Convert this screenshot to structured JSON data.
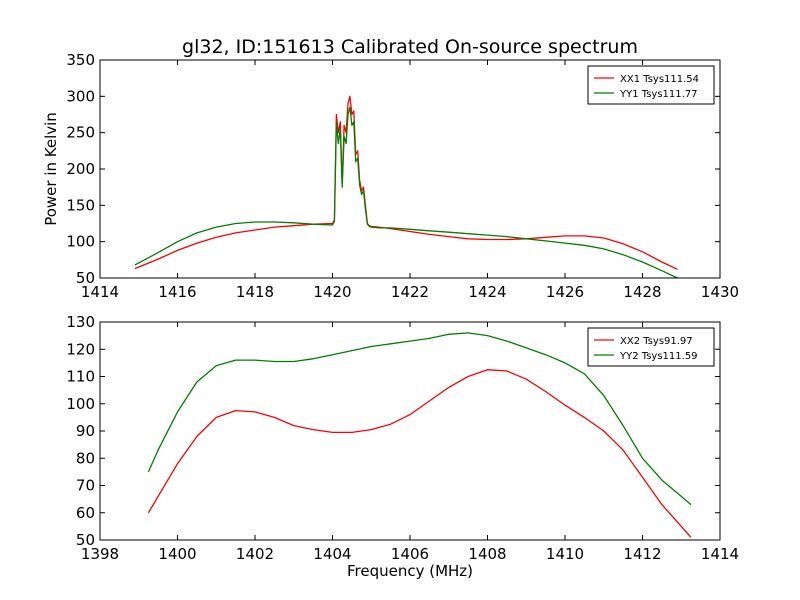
{
  "figure": {
    "title": "gl32, ID:151613 Calibrated On-source spectrum"
  },
  "chart_data": [
    {
      "type": "line",
      "title": "gl32, ID:151613 Calibrated On-source spectrum",
      "xlabel": "",
      "ylabel": "Power in Kelvin",
      "xlim": [
        1414,
        1430
      ],
      "ylim": [
        50,
        350
      ],
      "xticks": [
        1414,
        1416,
        1418,
        1420,
        1422,
        1424,
        1426,
        1428,
        1430
      ],
      "yticks": [
        50,
        100,
        150,
        200,
        250,
        300,
        350
      ],
      "grid": false,
      "legend_position": "top-right",
      "series": [
        {
          "name": "XX1 Tsys111.54",
          "color": "#ff0000",
          "x": [
            1414.9,
            1415.5,
            1416.0,
            1416.5,
            1417.0,
            1417.5,
            1418.0,
            1418.5,
            1419.0,
            1419.5,
            1420.0,
            1420.05,
            1420.1,
            1420.15,
            1420.2,
            1420.25,
            1420.3,
            1420.35,
            1420.4,
            1420.45,
            1420.5,
            1420.55,
            1420.6,
            1420.65,
            1420.7,
            1420.75,
            1420.8,
            1420.85,
            1420.9,
            1420.95,
            1421.0,
            1421.2,
            1421.5,
            1422.0,
            1422.5,
            1423.0,
            1423.5,
            1424.0,
            1424.5,
            1425.0,
            1425.5,
            1426.0,
            1426.5,
            1427.0,
            1427.5,
            1428.0,
            1428.5,
            1428.9
          ],
          "y": [
            63,
            76,
            88,
            98,
            106,
            112,
            116,
            120,
            122,
            124,
            125,
            130,
            275,
            250,
            265,
            180,
            260,
            250,
            290,
            300,
            275,
            280,
            220,
            225,
            185,
            170,
            175,
            150,
            125,
            122,
            121,
            120,
            118,
            114,
            110,
            107,
            104,
            103,
            103,
            104,
            106,
            108,
            108,
            105,
            97,
            86,
            72,
            62
          ]
        },
        {
          "name": "YY1 Tsys111.77",
          "color": "#008000",
          "x": [
            1414.9,
            1415.5,
            1416.0,
            1416.5,
            1417.0,
            1417.5,
            1418.0,
            1418.5,
            1419.0,
            1419.5,
            1420.0,
            1420.05,
            1420.1,
            1420.15,
            1420.2,
            1420.25,
            1420.3,
            1420.35,
            1420.4,
            1420.45,
            1420.5,
            1420.55,
            1420.6,
            1420.65,
            1420.7,
            1420.75,
            1420.8,
            1420.85,
            1420.9,
            1420.95,
            1421.0,
            1421.2,
            1421.5,
            1422.0,
            1422.5,
            1423.0,
            1423.5,
            1424.0,
            1424.5,
            1425.0,
            1425.5,
            1426.0,
            1426.5,
            1427.0,
            1427.5,
            1428.0,
            1428.5,
            1428.9
          ],
          "y": [
            68,
            85,
            100,
            112,
            120,
            125,
            127,
            127,
            126,
            124,
            123,
            128,
            265,
            235,
            255,
            175,
            245,
            235,
            275,
            285,
            260,
            265,
            210,
            215,
            178,
            165,
            170,
            145,
            124,
            121,
            120,
            119,
            119,
            117,
            115,
            113,
            111,
            109,
            107,
            104,
            101,
            98,
            95,
            90,
            82,
            72,
            60,
            50
          ]
        }
      ]
    },
    {
      "type": "line",
      "title": "",
      "xlabel": "Frequency (MHz)",
      "ylabel": "",
      "xlim": [
        1398,
        1414
      ],
      "ylim": [
        50,
        130
      ],
      "xticks": [
        1398,
        1400,
        1402,
        1404,
        1406,
        1408,
        1410,
        1412,
        1414
      ],
      "yticks": [
        50,
        60,
        70,
        80,
        90,
        100,
        110,
        120,
        130
      ],
      "grid": false,
      "legend_position": "top-right",
      "series": [
        {
          "name": "XX2 Tsys91.97",
          "color": "#ff0000",
          "x": [
            1399.25,
            1399.5,
            1400.0,
            1400.5,
            1401.0,
            1401.5,
            1402.0,
            1402.5,
            1403.0,
            1403.5,
            1404.0,
            1404.5,
            1405.0,
            1405.5,
            1406.0,
            1406.5,
            1407.0,
            1407.5,
            1408.0,
            1408.5,
            1409.0,
            1409.5,
            1410.0,
            1410.5,
            1411.0,
            1411.5,
            1412.0,
            1412.5,
            1413.0,
            1413.25
          ],
          "y": [
            60,
            66,
            78,
            88,
            95,
            97.5,
            97,
            95,
            92,
            90.5,
            89.5,
            89.5,
            90.5,
            92.5,
            96,
            101,
            106,
            110,
            112.5,
            112,
            109,
            104.5,
            99.5,
            95,
            90,
            83,
            73,
            63,
            55,
            51
          ]
        },
        {
          "name": "YY2 Tsys111.59",
          "color": "#008000",
          "x": [
            1399.25,
            1399.5,
            1400.0,
            1400.5,
            1401.0,
            1401.5,
            1402.0,
            1402.5,
            1403.0,
            1403.5,
            1404.0,
            1404.5,
            1405.0,
            1405.5,
            1406.0,
            1406.5,
            1407.0,
            1407.5,
            1408.0,
            1408.5,
            1409.0,
            1409.5,
            1410.0,
            1410.5,
            1411.0,
            1411.5,
            1412.0,
            1412.5,
            1413.0,
            1413.25
          ],
          "y": [
            75,
            83,
            97,
            108,
            114,
            116,
            116,
            115.5,
            115.5,
            116.5,
            118,
            119.5,
            121,
            122,
            123,
            124,
            125.5,
            126,
            125,
            123,
            120.5,
            118,
            115,
            111,
            103,
            92,
            80,
            72,
            66,
            63
          ]
        }
      ]
    }
  ]
}
